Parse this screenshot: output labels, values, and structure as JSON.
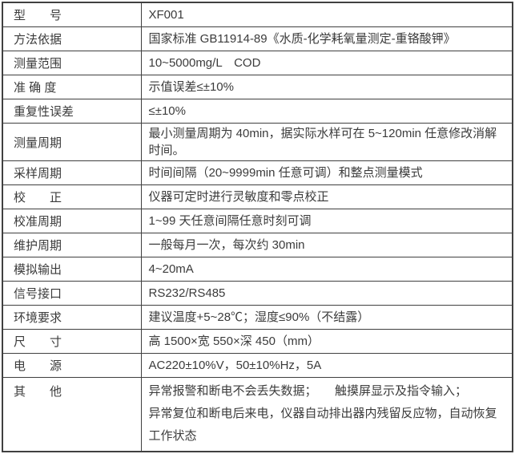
{
  "document": {
    "kind": "product-specification-table",
    "product_model": "XF001"
  },
  "colors": {
    "background": "#ffffff",
    "border": "#404040",
    "text": "#3b3b3b"
  },
  "table": {
    "columns": [
      "parameter-name",
      "parameter-value"
    ],
    "rows": [
      {
        "label": "型　　号",
        "value": [
          "XF001"
        ]
      },
      {
        "label": "方法依据",
        "value": [
          "国家标准 GB11914-89《水质-化学耗氧量测定-重铬酸钾》"
        ]
      },
      {
        "label": "测量范围",
        "value": [
          "10~5000mg/L　COD"
        ]
      },
      {
        "label": "准 确 度",
        "value": [
          "示值误差≤±10%"
        ]
      },
      {
        "label": "重复性误差",
        "value": [
          "≤±10%"
        ]
      },
      {
        "label": "测量周期",
        "value": [
          "最小测量周期为 40min，据实际水样可在 5~120min 任意修改消解时间。"
        ]
      },
      {
        "label": "采样周期",
        "value": [
          "时间间隔（20~9999min 任意可调）和整点测量模式"
        ]
      },
      {
        "label": "校　　正",
        "value": [
          "仪器可定时进行灵敏度和零点校正"
        ]
      },
      {
        "label": "校准周期",
        "value": [
          "1~99 天任意间隔任意时刻可调"
        ]
      },
      {
        "label": "维护周期",
        "value": [
          "一般每月一次，每次约 30min"
        ]
      },
      {
        "label": "模拟输出",
        "value": [
          "4~20mA"
        ]
      },
      {
        "label": "信号接口",
        "value": [
          "RS232/RS485"
        ]
      },
      {
        "label": "环境要求",
        "value": [
          "建议温度+5~28℃；湿度≤90%（不结露）"
        ]
      },
      {
        "label": "尺　　寸",
        "value": [
          "高 1500×宽 550×深 450（mm）"
        ]
      },
      {
        "label": "电　　源",
        "value": [
          "AC220±10%V，50±10%Hz，5A"
        ]
      },
      {
        "label": "其　　他",
        "multiline": true,
        "value": [
          "异常报警和断电不会丢失数据；　　触摸屏显示及指令输入；",
          "异常复位和断电后来电，仪器自动排出器内残留反应物，自动恢复工作状态"
        ]
      }
    ]
  }
}
